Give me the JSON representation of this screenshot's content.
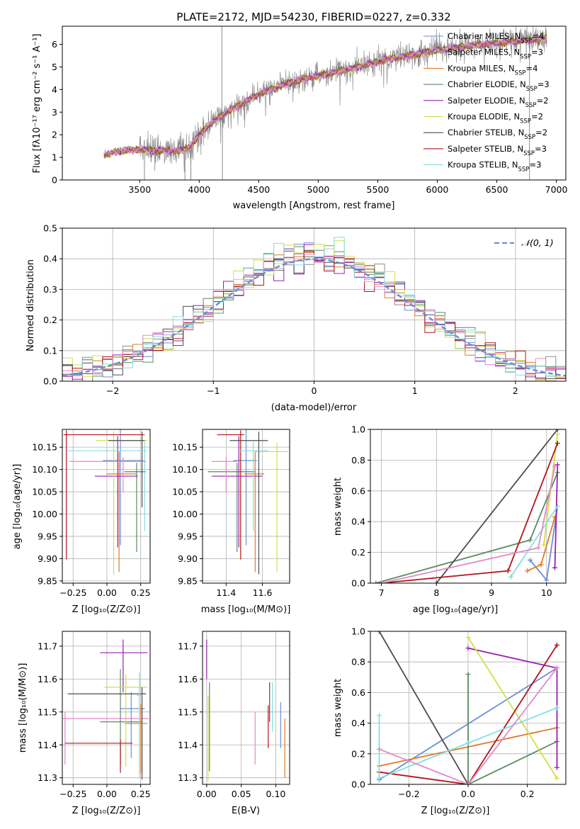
{
  "colors": {
    "Chabrier MILES": "#6a8fd6",
    "Salpeter MILES": "#8d8d8d",
    "Kroupa MILES": "#e07b28",
    "Chabrier ELODIE": "#5b8a5f",
    "Salpeter ELODIE": "#9a1fb0",
    "Kroupa ELODIE": "#cfe04a",
    "Chabrier STELIB": "#4d4d4d",
    "Salpeter STELIB": "#b3141c",
    "Kroupa STELIB": "#86dde0",
    "pink": "#e18ac6",
    "gauss": "#6391d3"
  },
  "chart_data": [
    {
      "id": "spectrum",
      "type": "line",
      "title": "PLATE=2172, MJD=54230, FIBERID=0227, z=0.332",
      "xlabel": "wavelength [Angstrom, rest frame]",
      "ylabel": "Flux [fλ10⁻¹⁷ erg cm⁻² s⁻¹ A⁻¹]",
      "xlim": [
        2850,
        7080
      ],
      "ylim": [
        0,
        6.8
      ],
      "xticks": [
        "3500",
        "4000",
        "4500",
        "5000",
        "5500",
        "6000",
        "6500",
        "7000"
      ],
      "yticks": [
        "0",
        "1",
        "2",
        "3",
        "4",
        "5",
        "6"
      ],
      "legend_position": "top-right",
      "legend": [
        {
          "imf": "Chabrier",
          "lib": "MILES",
          "n": "4"
        },
        {
          "imf": "Salpeter",
          "lib": "MILES",
          "n": "3"
        },
        {
          "imf": "Kroupa",
          "lib": "MILES",
          "n": "4"
        },
        {
          "imf": "Chabrier",
          "lib": "ELODIE",
          "n": "3"
        },
        {
          "imf": "Salpeter",
          "lib": "ELODIE",
          "n": "2"
        },
        {
          "imf": "Kroupa",
          "lib": "ELODIE",
          "n": "2"
        },
        {
          "imf": "Chabrier",
          "lib": "STELIB",
          "n": "2"
        },
        {
          "imf": "Salpeter",
          "lib": "STELIB",
          "n": "3"
        },
        {
          "imf": "Kroupa",
          "lib": "STELIB",
          "n": "3"
        }
      ],
      "continuum": {
        "x": [
          3200,
          3300,
          3400,
          3500,
          3600,
          3700,
          3800,
          3900,
          4000,
          4100,
          4200,
          4300,
          4400,
          4500,
          4600,
          4700,
          4800,
          4900,
          5000,
          5100,
          5200,
          5300,
          5400,
          5500,
          5600,
          5700,
          5800,
          5900,
          6000,
          6100,
          6200,
          6300,
          6400,
          6500,
          6600,
          6700,
          6800,
          6900
        ],
        "y": [
          1.1,
          1.25,
          1.3,
          1.35,
          1.3,
          1.3,
          1.3,
          1.35,
          2.0,
          2.5,
          2.9,
          3.2,
          3.5,
          3.8,
          4.0,
          4.2,
          4.35,
          4.5,
          4.6,
          4.7,
          4.85,
          4.95,
          5.1,
          5.25,
          5.35,
          5.45,
          5.55,
          5.65,
          5.75,
          5.8,
          5.9,
          5.95,
          6.0,
          6.05,
          6.1,
          6.15,
          6.2,
          6.25
        ]
      }
    },
    {
      "id": "residuals",
      "type": "line",
      "xlabel": "(data-model)/error",
      "ylabel": "Normed distribution",
      "xlim": [
        -2.5,
        2.5
      ],
      "ylim": [
        0,
        0.5
      ],
      "xticks": [
        "−2",
        "−1",
        "0",
        "1",
        "2"
      ],
      "yticks": [
        "0.0",
        "0.1",
        "0.2",
        "0.3",
        "0.4",
        "0.5"
      ],
      "legend_position": "top-right",
      "legend_label": "𝒩(0, 1)",
      "grid": true,
      "bins": 50
    },
    {
      "id": "age-vs-Z",
      "type": "scatter",
      "xlabel": "Z [log₁₀(Z/Z⊙)]",
      "ylabel": "age  [log₁₀(age/yr)]",
      "xlim": [
        -0.33,
        0.32
      ],
      "ylim": [
        9.845,
        10.19
      ],
      "xticks": [
        "−0.25",
        "0.00",
        "0.25"
      ],
      "yticks": [
        "9.85",
        "9.90",
        "9.95",
        "10.00",
        "10.05",
        "10.10",
        "10.15"
      ],
      "grid": true,
      "points": [
        {
          "x": 0.1,
          "y": 10.12,
          "xerr": [
            0.13,
            0.17
          ],
          "yerr": [
            0.19,
            0.08
          ]
        },
        {
          "x": 0.09,
          "y": 10.09,
          "xerr": [
            0.09,
            0.13
          ],
          "yerr": [
            0.22,
            0.05
          ]
        },
        {
          "x": 0.22,
          "y": 10.095,
          "xerr": [
            0.09,
            0.07
          ],
          "yerr": [
            0.18,
            0.02
          ]
        },
        {
          "x": 0.08,
          "y": 10.085,
          "xerr": [
            0.17,
            0.15
          ],
          "yerr": [
            0.16,
            0.09
          ]
        },
        {
          "x": 0.05,
          "y": 10.165,
          "xerr": [
            0.13,
            0.25
          ],
          "yerr": [
            0.3,
            0.02
          ]
        },
        {
          "x": 0.26,
          "y": 10.165,
          "xerr": [
            0.25,
            0.02
          ],
          "yerr": [
            0.15,
            0.02
          ]
        },
        {
          "x": -0.3,
          "y": 10.178,
          "xerr": [
            0.02,
            0.58
          ],
          "yerr": [
            0.28,
            0.01
          ]
        },
        {
          "x": 0.28,
          "y": 10.142,
          "xerr": [
            0.58,
            0.02
          ],
          "yerr": [
            0.18,
            0.02
          ]
        },
        {
          "x": 0.12,
          "y": 10.118,
          "xerr": [
            0.4,
            0.17
          ],
          "yerr": [
            0.07,
            0.01
          ]
        }
      ]
    },
    {
      "id": "age-vs-mass",
      "type": "scatter",
      "xlabel": "mass [log₁₀(M/M⊙)]",
      "xlim": [
        11.27,
        11.75
      ],
      "ylim": [
        9.845,
        10.19
      ],
      "xticks": [
        "11.4",
        "11.6"
      ],
      "yticks": [
        "9.85",
        "9.90",
        "9.95",
        "10.00",
        "10.05",
        "10.10",
        "10.15"
      ],
      "grid": true,
      "points": [
        {
          "x": 11.51,
          "y": 10.12,
          "xerr": [
            0.07,
            0.06
          ],
          "yerr": [
            0.19,
            0.08
          ]
        },
        {
          "x": 11.56,
          "y": 10.09,
          "xerr": [
            0.06,
            0.05
          ],
          "yerr": [
            0.22,
            0.05
          ]
        },
        {
          "x": 11.46,
          "y": 10.095,
          "xerr": [
            0.16,
            0.1
          ],
          "yerr": [
            0.18,
            0.02
          ]
        },
        {
          "x": 11.47,
          "y": 10.085,
          "xerr": [
            0.15,
            0.13
          ],
          "yerr": [
            0.16,
            0.09
          ]
        },
        {
          "x": 11.68,
          "y": 10.14,
          "xerr": [
            0.12,
            0.06
          ],
          "yerr": [
            0.27,
            0.02
          ]
        },
        {
          "x": 11.58,
          "y": 10.165,
          "xerr": [
            0.16,
            0.05
          ],
          "yerr": [
            0.3,
            0.02
          ]
        },
        {
          "x": 11.48,
          "y": 10.178,
          "xerr": [
            0.13,
            0.02
          ],
          "yerr": [
            0.28,
            0.01
          ]
        },
        {
          "x": 11.55,
          "y": 10.142,
          "xerr": [
            0.08,
            0.08
          ],
          "yerr": [
            0.18,
            0.02
          ]
        },
        {
          "x": 11.4,
          "y": 10.118,
          "xerr": [
            0.08,
            0.06
          ],
          "yerr": [
            0.07,
            0.01
          ]
        }
      ]
    },
    {
      "id": "weight-vs-age",
      "type": "line",
      "xlabel": "age  [log₁₀(age/yr)]",
      "ylabel": "mass weight",
      "xlim": [
        6.8,
        10.35
      ],
      "ylim": [
        0,
        1.0
      ],
      "xticks": [
        "7",
        "8",
        "9",
        "10"
      ],
      "yticks": [
        "0.0",
        "0.2",
        "0.4",
        "0.6",
        "0.8",
        "1.0"
      ],
      "grid": true,
      "series": [
        {
          "color": "Chabrier MILES",
          "x": [
            9.7,
            10.0,
            10.2
          ],
          "y": [
            0.15,
            0.02,
            0.5
          ]
        },
        {
          "color": "Kroupa MILES",
          "x": [
            9.65,
            9.9,
            10.15
          ],
          "y": [
            0.08,
            0.12,
            0.43
          ]
        },
        {
          "color": "Chabrier ELODIE",
          "x": [
            6.9,
            9.7,
            10.2
          ],
          "y": [
            0.0,
            0.28,
            0.72
          ]
        },
        {
          "color": "Salpeter ELODIE",
          "x": [
            10.15,
            10.2
          ],
          "y": [
            0.1,
            0.77
          ]
        },
        {
          "color": "Kroupa ELODIE",
          "x": [
            9.95,
            10.2
          ],
          "y": [
            0.25,
            0.97
          ]
        },
        {
          "color": "Chabrier STELIB",
          "x": [
            8.0,
            10.2
          ],
          "y": [
            0.0,
            1.0
          ]
        },
        {
          "color": "Salpeter STELIB",
          "x": [
            7.0,
            9.3,
            10.2
          ],
          "y": [
            0.0,
            0.08,
            0.91
          ]
        },
        {
          "color": "Kroupa STELIB",
          "x": [
            9.35,
            10.2
          ],
          "y": [
            0.04,
            0.5
          ]
        },
        {
          "color": "pink",
          "x": [
            7.0,
            9.85,
            10.15
          ],
          "y": [
            0.0,
            0.23,
            0.76
          ]
        }
      ]
    },
    {
      "id": "mass-vs-Z",
      "type": "scatter",
      "xlabel": "Z [log₁₀(Z/Z⊙)]",
      "ylabel": "mass [log₁₀(M/M⊙)]",
      "xlim": [
        -0.33,
        0.32
      ],
      "ylim": [
        11.28,
        11.745
      ],
      "xticks": [
        "−0.25",
        "0.00",
        "0.25"
      ],
      "yticks": [
        "11.3",
        "11.4",
        "11.5",
        "11.6",
        "11.7"
      ],
      "grid": true,
      "points": [
        {
          "x": 0.18,
          "y": 11.51,
          "xerr": [
            0.08,
            0.1
          ],
          "yerr": [
            0.15,
            0.05
          ]
        },
        {
          "x": 0.25,
          "y": 11.465,
          "xerr": [
            0.12,
            0.05
          ],
          "yerr": [
            0.15,
            0.06
          ]
        },
        {
          "x": 0.1,
          "y": 11.47,
          "xerr": [
            0.15,
            0.16
          ],
          "yerr": [
            0.13,
            0.16
          ]
        },
        {
          "x": 0.12,
          "y": 11.68,
          "xerr": [
            0.17,
            0.18
          ],
          "yerr": [
            0.12,
            0.04
          ]
        },
        {
          "x": 0.14,
          "y": 11.575,
          "xerr": [
            0.16,
            0.16
          ],
          "yerr": [
            0.24,
            0.04
          ]
        },
        {
          "x": -0.31,
          "y": 11.48,
          "xerr": [
            0.02,
            0.62
          ],
          "yerr": [
            0.14,
            0.02
          ]
        },
        {
          "x": 0.26,
          "y": 11.555,
          "xerr": [
            0.55,
            0.03
          ],
          "yerr": [
            0.26,
            0.02
          ]
        },
        {
          "x": 0.1,
          "y": 11.405,
          "xerr": [
            0.41,
            0.09
          ],
          "yerr": [
            0.09,
            0.01
          ]
        },
        {
          "x": 0.24,
          "y": 11.55,
          "xerr": [
            0.02,
            0.02
          ],
          "yerr": [
            0.25,
            0.07
          ]
        }
      ]
    },
    {
      "id": "mass-vs-ebv",
      "type": "scatter",
      "xlabel": "E(B-V)",
      "xlim": [
        -0.006,
        0.12
      ],
      "ylim": [
        11.28,
        11.745
      ],
      "xticks": [
        "0.00",
        "0.05",
        "0.10"
      ],
      "yticks": [
        "11.3",
        "11.4",
        "11.5",
        "11.6",
        "11.7"
      ],
      "grid": true,
      "points": [
        {
          "x": 0.107,
          "y": 11.46,
          "yerr": [
            0.07,
            0.07
          ]
        },
        {
          "x": 0.113,
          "y": 11.4,
          "yerr": [
            0.1,
            0.08
          ]
        },
        {
          "x": 0.004,
          "y": 11.45,
          "yerr": [
            0.13,
            0.14
          ]
        },
        {
          "x": 0.0,
          "y": 11.66,
          "yerr": [
            0.06,
            0.06
          ]
        },
        {
          "x": 0.002,
          "y": 11.42,
          "yerr": [
            0.13,
            0.13
          ]
        },
        {
          "x": 0.07,
          "y": 11.43,
          "yerr": [
            0.09,
            0.07
          ]
        },
        {
          "x": 0.091,
          "y": 11.53,
          "yerr": [
            0.06,
            0.06
          ]
        },
        {
          "x": 0.089,
          "y": 11.46,
          "yerr": [
            0.07,
            0.06
          ]
        },
        {
          "x": 0.095,
          "y": 11.51,
          "yerr": [
            0.07,
            0.08
          ]
        }
      ]
    },
    {
      "id": "weight-vs-Z",
      "type": "line",
      "xlabel": "Z [log₁₀(Z/Z⊙)]",
      "ylabel": "mass weight",
      "xlim": [
        -0.33,
        0.33
      ],
      "ylim": [
        0,
        1.0
      ],
      "xticks": [
        "−0.2",
        "0.0",
        "0.2"
      ],
      "yticks": [
        "0.0",
        "0.2",
        "0.4",
        "0.6",
        "0.8",
        "1.0"
      ],
      "grid": true,
      "series": [
        {
          "color": "Chabrier MILES",
          "x": [
            -0.3,
            0.3
          ],
          "y": [
            0.03,
            0.76
          ]
        },
        {
          "color": "Kroupa MILES",
          "x": [
            -0.3,
            0.3
          ],
          "y": [
            0.12,
            0.37
          ]
        },
        {
          "color": "Chabrier ELODIE",
          "x": [
            0.0,
            0.0,
            0.3
          ],
          "y": [
            0.72,
            0.0,
            0.28
          ]
        },
        {
          "color": "Salpeter ELODIE",
          "x": [
            0.0,
            0.3,
            0.3
          ],
          "y": [
            0.89,
            0.76,
            0.11
          ]
        },
        {
          "color": "Kroupa ELODIE",
          "x": [
            0.0,
            0.3
          ],
          "y": [
            0.96,
            0.04
          ]
        },
        {
          "color": "Chabrier STELIB",
          "x": [
            -0.3,
            0.0
          ],
          "y": [
            1.0,
            0.0
          ]
        },
        {
          "color": "Salpeter STELIB",
          "x": [
            -0.3,
            0.0,
            0.3
          ],
          "y": [
            0.08,
            0.0,
            0.91
          ]
        },
        {
          "color": "Kroupa STELIB",
          "x": [
            -0.3,
            -0.3,
            0.0,
            0.3
          ],
          "y": [
            0.45,
            0.04,
            0.27,
            0.5
          ]
        },
        {
          "color": "pink",
          "x": [
            -0.3,
            0.0,
            0.3
          ],
          "y": [
            0.23,
            0.0,
            0.76
          ]
        }
      ]
    }
  ]
}
